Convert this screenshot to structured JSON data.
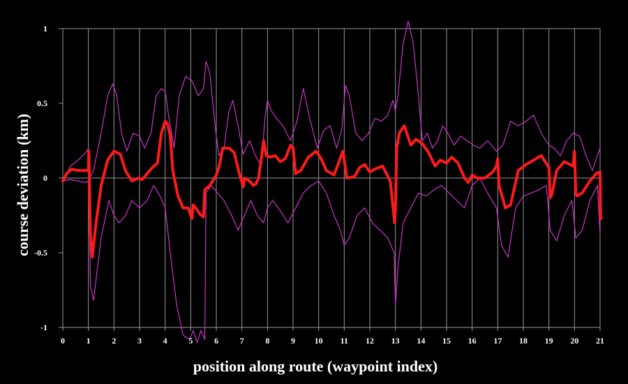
{
  "chart_data": {
    "type": "line",
    "xlabel": "position along route (waypoint index)",
    "ylabel": "course deviation (km)",
    "ylim": [
      -1,
      1
    ],
    "yticks": [
      -1,
      -0.5,
      0,
      0.5,
      1
    ],
    "ytick_labels": [
      "-1",
      "-0.5",
      "0",
      "0.5",
      "1"
    ],
    "xlim": [
      0,
      21
    ],
    "xticks": [
      {
        "label": "0",
        "x": 0
      },
      {
        "label": "1",
        "x": 1
      },
      {
        "label": "2",
        "x": 2
      },
      {
        "label": "3",
        "x": 3
      },
      {
        "label": "4",
        "x": 4
      },
      {
        "label": "5",
        "x": 5
      },
      {
        "label": "6",
        "x": 6
      },
      {
        "label": "7",
        "x": 7
      },
      {
        "label": "8",
        "x": 8
      },
      {
        "label": "9",
        "x": 9
      },
      {
        "label": "10",
        "x": 10
      },
      {
        "label": "11",
        "x": 11
      },
      {
        "label": "12",
        "x": 12
      },
      {
        "label": "13",
        "x": 13
      },
      {
        "label": "14",
        "x": 14
      },
      {
        "label": "15",
        "x": 15
      },
      {
        "label": "16",
        "x": 16
      },
      {
        "label": "17",
        "x": 17
      },
      {
        "label": "18",
        "x": 18
      },
      {
        "label": "19",
        "x": 19
      },
      {
        "label": "20",
        "x": 20
      },
      {
        "label": "21",
        "x": 21
      }
    ],
    "grid": {
      "vertical_at_waypoints": true,
      "horizontal_zero": true
    },
    "colors": {
      "mean": "#ff1a1a",
      "envelope": "#cc33cc",
      "grid": "#9a9a9a",
      "text": "#ffffff",
      "background": "#000000"
    },
    "series": [
      {
        "role": "mean",
        "x": [
          0,
          0.15,
          0.35,
          0.6,
          0.85,
          0.95,
          1.0,
          1.02,
          1.08,
          1.15,
          1.3,
          1.5,
          1.75,
          2.0,
          2.25,
          2.45,
          2.7,
          2.95,
          3.1,
          3.3,
          3.5,
          3.7,
          3.85,
          4.0,
          4.1,
          4.2,
          4.3,
          4.5,
          4.7,
          4.9,
          5.0,
          5.05,
          5.1,
          5.2,
          5.35,
          5.5,
          5.55,
          5.6,
          5.75,
          6.0,
          6.1,
          6.25,
          6.5,
          6.7,
          6.9,
          7.0,
          7.05,
          7.1,
          7.3,
          7.45,
          7.55,
          7.65,
          7.75,
          7.85,
          7.95,
          8.1,
          8.3,
          8.5,
          8.7,
          8.9,
          9.0,
          9.1,
          9.3,
          9.6,
          9.9,
          10.1,
          10.3,
          10.6,
          10.95,
          11.1,
          11.4,
          11.6,
          11.8,
          12.0,
          12.2,
          12.5,
          12.8,
          12.97,
          13.0,
          13.05,
          13.15,
          13.35,
          13.6,
          13.8,
          14.05,
          14.3,
          14.55,
          14.75,
          15.0,
          15.2,
          15.45,
          15.7,
          15.85,
          16.0,
          16.2,
          16.5,
          16.8,
          16.95,
          17.0,
          17.05,
          17.3,
          17.5,
          17.8,
          18.1,
          18.4,
          18.7,
          19.0,
          19.05,
          19.1,
          19.3,
          19.6,
          19.95,
          20.0,
          20.05,
          20.1,
          20.3,
          20.6,
          20.85,
          21.0,
          21.02,
          21.05
        ],
        "y": [
          -0.02,
          0.03,
          0.06,
          0.05,
          0.05,
          0.05,
          0.06,
          0.18,
          -0.38,
          -0.53,
          -0.3,
          -0.05,
          0.12,
          0.18,
          0.16,
          0.05,
          -0.02,
          0.0,
          -0.01,
          0.03,
          0.07,
          0.1,
          0.3,
          0.38,
          0.36,
          0.28,
          0.05,
          -0.12,
          -0.2,
          -0.2,
          -0.25,
          -0.27,
          -0.18,
          -0.2,
          -0.24,
          -0.26,
          -0.08,
          -0.07,
          -0.05,
          0.02,
          0.07,
          0.2,
          0.2,
          0.17,
          0.03,
          -0.03,
          -0.06,
          0.0,
          -0.02,
          -0.05,
          -0.04,
          0.0,
          0.12,
          0.25,
          0.15,
          0.14,
          0.15,
          0.11,
          0.13,
          0.22,
          0.2,
          0.03,
          0.05,
          0.14,
          0.18,
          0.13,
          0.05,
          0.02,
          0.18,
          0.0,
          0.01,
          0.07,
          0.09,
          0.04,
          0.06,
          0.08,
          -0.02,
          -0.3,
          -0.2,
          0.2,
          0.3,
          0.35,
          0.22,
          0.26,
          0.23,
          0.17,
          0.08,
          0.12,
          0.1,
          0.14,
          0.1,
          0.0,
          -0.03,
          0.02,
          0.0,
          0.0,
          0.04,
          0.08,
          0.13,
          -0.05,
          -0.2,
          -0.18,
          0.05,
          0.09,
          0.12,
          0.15,
          0.07,
          -0.13,
          -0.12,
          0.05,
          0.11,
          0.08,
          0.18,
          -0.1,
          -0.12,
          -0.1,
          -0.02,
          0.03,
          0.04,
          -0.27,
          -0.27
        ]
      },
      {
        "role": "upper",
        "x": [
          0,
          0.3,
          0.6,
          0.9,
          1.0,
          1.05,
          1.2,
          1.5,
          1.75,
          1.95,
          2.1,
          2.3,
          2.5,
          2.75,
          3.0,
          3.2,
          3.45,
          3.65,
          3.85,
          4.0,
          4.15,
          4.35,
          4.55,
          4.8,
          5.05,
          5.3,
          5.5,
          5.6,
          5.75,
          5.95,
          6.1,
          6.3,
          6.5,
          6.65,
          6.85,
          7.05,
          7.3,
          7.5,
          7.75,
          7.9,
          8.0,
          8.15,
          8.35,
          8.6,
          8.9,
          9.15,
          9.4,
          9.65,
          9.95,
          10.2,
          10.45,
          10.7,
          10.9,
          11.05,
          11.2,
          11.45,
          11.7,
          11.95,
          12.2,
          12.45,
          12.7,
          12.9,
          13.0,
          13.1,
          13.3,
          13.5,
          13.7,
          13.9,
          14.05,
          14.25,
          14.45,
          14.65,
          14.85,
          15.05,
          15.3,
          15.55,
          15.8,
          16.05,
          16.3,
          16.6,
          16.95,
          17.2,
          17.5,
          17.8,
          18.1,
          18.4,
          18.7,
          19.0,
          19.2,
          19.45,
          19.7,
          19.95,
          20.2,
          20.45,
          20.7,
          20.95,
          21.0
        ],
        "y": [
          -0.02,
          0.08,
          0.12,
          0.17,
          0.2,
          0.0,
          0.05,
          0.3,
          0.55,
          0.63,
          0.56,
          0.3,
          0.18,
          0.3,
          0.28,
          0.2,
          0.3,
          0.55,
          0.6,
          0.58,
          0.4,
          0.2,
          0.55,
          0.68,
          0.65,
          0.55,
          0.6,
          0.78,
          0.7,
          0.35,
          0.15,
          0.2,
          0.45,
          0.52,
          0.35,
          0.16,
          0.25,
          0.16,
          0.08,
          0.4,
          0.52,
          0.45,
          0.4,
          0.35,
          0.25,
          0.38,
          0.6,
          0.4,
          0.2,
          0.32,
          0.35,
          0.2,
          0.32,
          0.62,
          0.55,
          0.3,
          0.25,
          0.3,
          0.4,
          0.38,
          0.42,
          0.52,
          0.45,
          0.55,
          0.9,
          1.05,
          0.9,
          0.55,
          0.25,
          0.3,
          0.2,
          0.25,
          0.35,
          0.3,
          0.22,
          0.28,
          0.25,
          0.22,
          0.2,
          0.25,
          0.18,
          0.22,
          0.38,
          0.35,
          0.38,
          0.42,
          0.3,
          0.22,
          0.2,
          0.15,
          0.25,
          0.3,
          0.28,
          0.15,
          0.05,
          0.18,
          0.2
        ]
      },
      {
        "role": "lower",
        "x": [
          0,
          0.3,
          0.6,
          0.9,
          1.0,
          1.03,
          1.08,
          1.2,
          1.5,
          1.8,
          2.0,
          2.2,
          2.45,
          2.7,
          3.0,
          3.3,
          3.55,
          3.8,
          4.0,
          4.2,
          4.45,
          4.7,
          4.95,
          5.1,
          5.25,
          5.4,
          5.55,
          5.6,
          5.8,
          6.05,
          6.3,
          6.6,
          6.85,
          7.1,
          7.35,
          7.6,
          7.85,
          8.0,
          8.2,
          8.5,
          8.8,
          9.1,
          9.4,
          9.7,
          10.0,
          10.3,
          10.6,
          10.85,
          11.0,
          11.2,
          11.5,
          11.8,
          12.1,
          12.4,
          12.7,
          12.95,
          13.0,
          13.1,
          13.3,
          13.6,
          13.9,
          14.2,
          14.5,
          14.8,
          15.1,
          15.4,
          15.7,
          16.0,
          16.3,
          16.6,
          16.95,
          17.15,
          17.4,
          17.7,
          18.0,
          18.3,
          18.6,
          18.9,
          19.05,
          19.3,
          19.6,
          19.9,
          20.05,
          20.3,
          20.6,
          20.9,
          21.0
        ],
        "y": [
          -0.02,
          -0.01,
          -0.02,
          -0.03,
          -0.02,
          -0.2,
          -0.72,
          -0.82,
          -0.4,
          -0.15,
          -0.25,
          -0.3,
          -0.25,
          -0.15,
          -0.2,
          -0.15,
          -0.05,
          -0.12,
          -0.2,
          -0.5,
          -0.85,
          -1.05,
          -1.08,
          -1.02,
          -1.1,
          -1.02,
          -1.08,
          -0.1,
          -0.05,
          -0.1,
          -0.15,
          -0.25,
          -0.35,
          -0.25,
          -0.15,
          -0.25,
          -0.3,
          -0.2,
          -0.15,
          -0.22,
          -0.3,
          -0.2,
          -0.1,
          -0.05,
          -0.02,
          -0.1,
          -0.25,
          -0.35,
          -0.45,
          -0.4,
          -0.25,
          -0.2,
          -0.3,
          -0.35,
          -0.4,
          -0.5,
          -0.85,
          -0.6,
          -0.3,
          -0.2,
          -0.1,
          -0.12,
          -0.08,
          -0.05,
          -0.1,
          -0.15,
          -0.2,
          -0.05,
          0.0,
          -0.1,
          -0.2,
          -0.45,
          -0.53,
          -0.2,
          -0.12,
          -0.1,
          -0.08,
          -0.05,
          -0.35,
          -0.42,
          -0.25,
          -0.15,
          -0.4,
          -0.35,
          -0.15,
          -0.05,
          -0.38
        ]
      }
    ]
  }
}
